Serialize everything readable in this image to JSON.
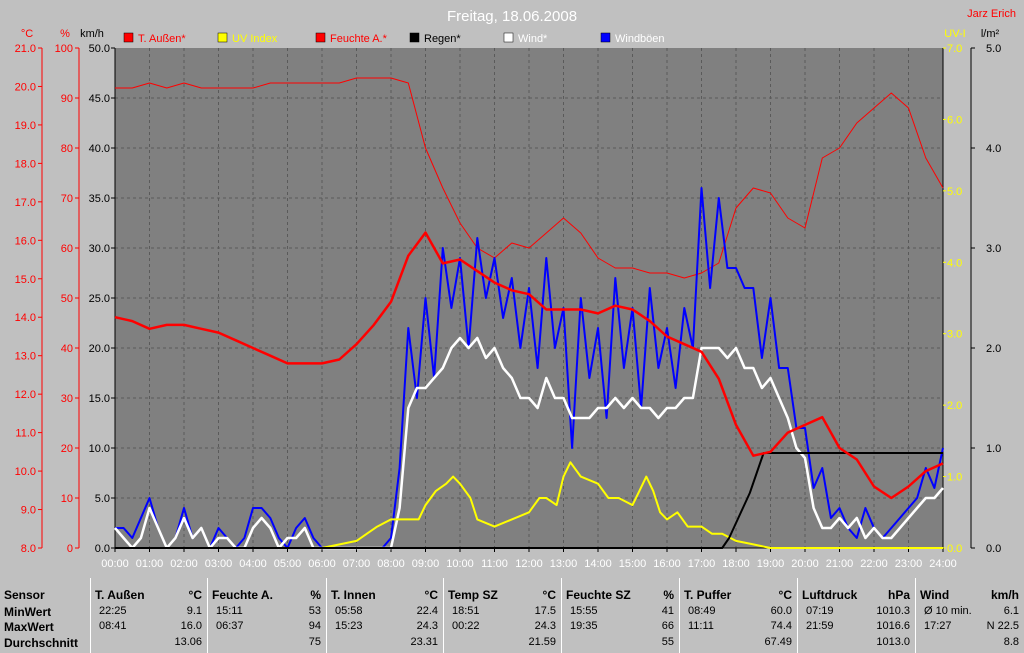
{
  "header": {
    "title": "Freitag, 18.06.2008",
    "author": "Jarz Erich",
    "left_units": [
      "°C",
      "%",
      "km/h"
    ],
    "right_units": [
      "UV-I",
      "l/m²"
    ]
  },
  "legend": [
    {
      "label": "T. Außen*",
      "box": "#ff0000",
      "text": "#ff0000"
    },
    {
      "label": "UV Index",
      "box": "#ffff00",
      "text": "#ffff00"
    },
    {
      "label": "Feuchte A.*",
      "box": "#ff0000",
      "text": "#ff0000"
    },
    {
      "label": "Regen*",
      "box": "#000000",
      "text": "#000000"
    },
    {
      "label": "Wind*",
      "box": "#ffffff",
      "text": "#ffffff"
    },
    {
      "label": "Windböen",
      "box": "#0000ff",
      "text": "#ffffff"
    }
  ],
  "chart_data": {
    "type": "line",
    "grid": true,
    "x_labels": [
      "00:00",
      "01:00",
      "02:00",
      "03:00",
      "04:00",
      "05:00",
      "06:00",
      "07:00",
      "08:00",
      "09:00",
      "10:00",
      "11:00",
      "12:00",
      "13:00",
      "14:00",
      "15:00",
      "16:00",
      "17:00",
      "18:00",
      "19:00",
      "20:00",
      "21:00",
      "22:00",
      "23:00",
      "24:00"
    ],
    "axes": {
      "temp_c": {
        "ticks": [
          "8.0",
          "9.0",
          "10.0",
          "11.0",
          "12.0",
          "13.0",
          "14.0",
          "15.0",
          "16.0",
          "17.0",
          "18.0",
          "19.0",
          "20.0",
          "21.0"
        ],
        "color": "#ff0000",
        "range": [
          8,
          21
        ]
      },
      "humidity_pct": {
        "ticks": [
          "0",
          "10",
          "20",
          "30",
          "40",
          "50",
          "60",
          "70",
          "80",
          "90",
          "100"
        ],
        "color": "#ff0000",
        "range": [
          0,
          100
        ]
      },
      "wind_kmh": {
        "ticks": [
          "0.0",
          "5.0",
          "10.0",
          "15.0",
          "20.0",
          "25.0",
          "30.0",
          "35.0",
          "40.0",
          "45.0",
          "50.0"
        ],
        "color": "#000000",
        "range": [
          0,
          50
        ]
      },
      "uv_index": {
        "ticks": [
          "0.0",
          "1.0",
          "2.0",
          "3.0",
          "4.0",
          "5.0",
          "6.0",
          "7.0"
        ],
        "color": "#ffff00",
        "range": [
          0,
          7
        ]
      },
      "rain_lm2": {
        "ticks": [
          "0.0",
          "1.0",
          "2.0",
          "3.0",
          "4.0",
          "5.0"
        ],
        "color": "#000000",
        "range": [
          0,
          5
        ]
      }
    },
    "series": [
      {
        "name": "T. Außen*",
        "color": "#ff0000",
        "width": 2.5,
        "axis": "temp_c",
        "x": [
          0,
          0.5,
          1,
          1.5,
          2,
          2.5,
          3,
          3.5,
          4,
          4.5,
          5,
          5.5,
          6,
          6.5,
          7,
          7.5,
          8,
          8.5,
          9,
          9.5,
          10,
          10.5,
          11,
          11.5,
          12,
          12.5,
          13,
          13.5,
          14,
          14.5,
          15,
          15.5,
          16,
          16.5,
          17,
          17.5,
          18,
          18.5,
          19,
          19.5,
          20,
          20.5,
          21,
          21.5,
          22,
          22.5,
          23,
          23.5,
          24
        ],
        "y": [
          14.0,
          13.9,
          13.7,
          13.8,
          13.8,
          13.7,
          13.6,
          13.4,
          13.2,
          13.0,
          12.8,
          12.8,
          12.8,
          12.9,
          13.3,
          13.8,
          14.4,
          15.6,
          16.2,
          15.4,
          15.5,
          15.2,
          14.9,
          14.7,
          14.6,
          14.2,
          14.2,
          14.2,
          14.1,
          14.3,
          14.2,
          13.9,
          13.5,
          13.3,
          13.1,
          12.4,
          11.2,
          10.4,
          10.5,
          11.0,
          11.2,
          11.4,
          10.6,
          10.3,
          9.6,
          9.3,
          9.6,
          10.0,
          10.2
        ]
      },
      {
        "name": "Feuchte A.*",
        "color": "#ff0000",
        "width": 1,
        "axis": "humidity_pct",
        "x": [
          0,
          0.5,
          1,
          1.5,
          2,
          2.5,
          3,
          3.5,
          4,
          4.5,
          5,
          5.5,
          6,
          6.5,
          7,
          7.5,
          8,
          8.5,
          9,
          9.5,
          10,
          10.5,
          11,
          11.5,
          12,
          12.5,
          13,
          13.5,
          14,
          14.5,
          15,
          15.5,
          16,
          16.5,
          17,
          17.5,
          18,
          18.5,
          19,
          19.5,
          20,
          20.5,
          21,
          21.5,
          22,
          22.5,
          23,
          23.5,
          24
        ],
        "y": [
          92,
          92,
          93,
          92,
          93,
          92,
          92,
          92,
          92,
          93,
          93,
          93,
          93,
          93,
          94,
          94,
          94,
          93,
          80,
          72,
          65,
          60,
          58,
          61,
          60,
          63,
          66,
          63,
          58,
          56,
          56,
          55,
          55,
          54,
          55,
          57,
          68,
          72,
          71,
          66,
          64,
          78,
          80,
          85,
          88,
          91,
          88,
          78,
          72
        ]
      },
      {
        "name": "Windböen",
        "color": "#0000ff",
        "width": 2,
        "axis": "wind_kmh",
        "x": [
          0,
          0.25,
          0.5,
          0.75,
          1,
          1.25,
          1.5,
          1.75,
          2,
          2.25,
          2.5,
          2.75,
          3,
          3.25,
          3.5,
          3.75,
          4,
          4.25,
          4.5,
          4.75,
          5,
          5.25,
          5.5,
          5.75,
          6,
          6.25,
          6.5,
          6.75,
          7,
          7.25,
          7.5,
          7.75,
          8,
          8.25,
          8.5,
          8.75,
          9,
          9.25,
          9.5,
          9.75,
          10,
          10.25,
          10.5,
          10.75,
          11,
          11.25,
          11.5,
          11.75,
          12,
          12.25,
          12.5,
          12.75,
          13,
          13.25,
          13.5,
          13.75,
          14,
          14.25,
          14.5,
          14.75,
          15,
          15.25,
          15.5,
          15.75,
          16,
          16.25,
          16.5,
          16.75,
          17,
          17.25,
          17.5,
          17.75,
          18,
          18.25,
          18.5,
          18.75,
          19,
          19.25,
          19.5,
          19.75,
          20,
          20.25,
          20.5,
          20.75,
          21,
          21.25,
          21.5,
          21.75,
          22,
          22.25,
          22.5,
          22.75,
          23,
          23.25,
          23.5,
          23.75,
          24
        ],
        "y": [
          2,
          2,
          1,
          3,
          5,
          2,
          0,
          1,
          4,
          1,
          2,
          0,
          2,
          1,
          0,
          1,
          4,
          4,
          3,
          1,
          0,
          2,
          3,
          1,
          0,
          0,
          0,
          0,
          0,
          0,
          0,
          0,
          1,
          8,
          22,
          15,
          25,
          17,
          30,
          24,
          29,
          20,
          31,
          25,
          29,
          23,
          27,
          20,
          26,
          18,
          29,
          20,
          24,
          10,
          25,
          17,
          22,
          13,
          27,
          18,
          24,
          14,
          26,
          18,
          22,
          16,
          24,
          20,
          36,
          26,
          35,
          28,
          28,
          26,
          26,
          19,
          25,
          18,
          18,
          12,
          12,
          6,
          8,
          3,
          4,
          2,
          1,
          4,
          2,
          1,
          2,
          3,
          4,
          5,
          8,
          6,
          10
        ]
      },
      {
        "name": "Wind*",
        "color": "#ffffff",
        "width": 2.5,
        "axis": "wind_kmh",
        "x": [
          0,
          0.25,
          0.5,
          0.75,
          1,
          1.25,
          1.5,
          1.75,
          2,
          2.25,
          2.5,
          2.75,
          3,
          3.25,
          3.5,
          3.75,
          4,
          4.25,
          4.5,
          4.75,
          5,
          5.25,
          5.5,
          5.75,
          6,
          6.25,
          6.5,
          6.75,
          7,
          7.25,
          7.5,
          7.75,
          8,
          8.25,
          8.5,
          8.75,
          9,
          9.25,
          9.5,
          9.75,
          10,
          10.25,
          10.5,
          10.75,
          11,
          11.25,
          11.5,
          11.75,
          12,
          12.25,
          12.5,
          12.75,
          13,
          13.25,
          13.5,
          13.75,
          14,
          14.25,
          14.5,
          14.75,
          15,
          15.25,
          15.5,
          15.75,
          16,
          16.25,
          16.5,
          16.75,
          17,
          17.25,
          17.5,
          17.75,
          18,
          18.25,
          18.5,
          18.75,
          19,
          19.25,
          19.5,
          19.75,
          20,
          20.25,
          20.5,
          20.75,
          21,
          21.25,
          21.5,
          21.75,
          22,
          22.25,
          22.5,
          22.75,
          23,
          23.25,
          23.5,
          23.75,
          24
        ],
        "y": [
          2,
          1,
          0,
          1,
          4,
          2,
          0,
          1,
          3,
          1,
          2,
          0,
          1,
          1,
          0,
          0,
          2,
          3,
          2,
          0,
          1,
          1,
          2,
          0,
          0,
          0,
          0,
          0,
          0,
          0,
          0,
          0,
          0,
          4,
          14,
          16,
          16,
          17,
          18,
          20,
          21,
          20,
          21,
          19,
          20,
          18,
          17,
          15,
          15,
          14,
          17,
          15,
          15,
          13,
          13,
          13,
          14,
          14,
          15,
          14,
          15,
          14,
          14,
          13,
          14,
          14,
          15,
          15,
          20,
          20,
          20,
          19,
          20,
          18,
          18,
          16,
          17,
          15,
          13,
          10,
          9,
          4,
          2,
          2,
          3,
          2,
          3,
          1,
          2,
          1,
          1,
          2,
          3,
          4,
          5,
          5,
          6
        ]
      },
      {
        "name": "UV Index",
        "color": "#ffff00",
        "width": 2,
        "axis": "uv_index",
        "x": [
          0,
          6,
          7,
          7.3,
          7.6,
          8,
          8.3,
          8.8,
          9,
          9.3,
          9.6,
          9.8,
          10,
          10.3,
          10.5,
          11,
          11.5,
          12,
          12.3,
          12.5,
          12.8,
          13,
          13.2,
          13.5,
          14,
          14.3,
          14.6,
          15,
          15.2,
          15.4,
          15.6,
          15.8,
          16,
          16.3,
          16.6,
          17,
          17.3,
          17.6,
          18,
          18.5,
          19,
          24
        ],
        "y": [
          0,
          0,
          0.1,
          0.2,
          0.3,
          0.4,
          0.4,
          0.4,
          0.6,
          0.8,
          0.9,
          1.0,
          0.9,
          0.7,
          0.4,
          0.3,
          0.4,
          0.5,
          0.7,
          0.7,
          0.6,
          1.0,
          1.2,
          1.0,
          0.9,
          0.7,
          0.7,
          0.6,
          0.8,
          1.0,
          0.8,
          0.5,
          0.4,
          0.5,
          0.3,
          0.3,
          0.2,
          0.2,
          0.1,
          0.05,
          0,
          0
        ]
      },
      {
        "name": "Regen*",
        "color": "#000000",
        "width": 2,
        "axis": "rain_lm2",
        "x": [
          0,
          17.6,
          17.8,
          18.0,
          18.2,
          18.4,
          18.6,
          18.8,
          24
        ],
        "y": [
          0,
          0,
          0.1,
          0.25,
          0.4,
          0.55,
          0.75,
          0.95,
          0.95
        ]
      }
    ]
  },
  "stats": {
    "row_labels": [
      "Sensor",
      "MinWert",
      "MaxWert",
      "Durchschnitt"
    ],
    "columns": [
      {
        "name": "T. Außen",
        "unit": "°C",
        "min_time": "22:25",
        "min_val": "9.1",
        "max_time": "08:41",
        "max_val": "16.0",
        "avg": "13.06"
      },
      {
        "name": "Feuchte A.",
        "unit": "%",
        "min_time": "15:11",
        "min_val": "53",
        "max_time": "06:37",
        "max_val": "94",
        "avg": "75"
      },
      {
        "name": "T. Innen",
        "unit": "°C",
        "min_time": "05:58",
        "min_val": "22.4",
        "max_time": "15:23",
        "max_val": "24.3",
        "avg": "23.31"
      },
      {
        "name": "Temp SZ",
        "unit": "°C",
        "min_time": "18:51",
        "min_val": "17.5",
        "max_time": "00:22",
        "max_val": "24.3",
        "avg": "21.59"
      },
      {
        "name": "Feuchte SZ",
        "unit": "%",
        "min_time": "15:55",
        "min_val": "41",
        "max_time": "19:35",
        "max_val": "66",
        "avg": "55"
      },
      {
        "name": "T. Puffer",
        "unit": "°C",
        "min_time": "08:49",
        "min_val": "60.0",
        "max_time": "11:11",
        "max_val": "74.4",
        "avg": "67.49"
      },
      {
        "name": "Luftdruck",
        "unit": "hPa",
        "min_time": "07:19",
        "min_val": "1010.3",
        "max_time": "21:59",
        "max_val": "1016.6",
        "avg": "1013.0"
      },
      {
        "name": "Wind",
        "unit": "km/h",
        "min_time": "Ø 10 min.",
        "min_val": "6.1",
        "max_time": "17:27",
        "max_val": "N 22.5",
        "avg": "8.8"
      }
    ]
  }
}
